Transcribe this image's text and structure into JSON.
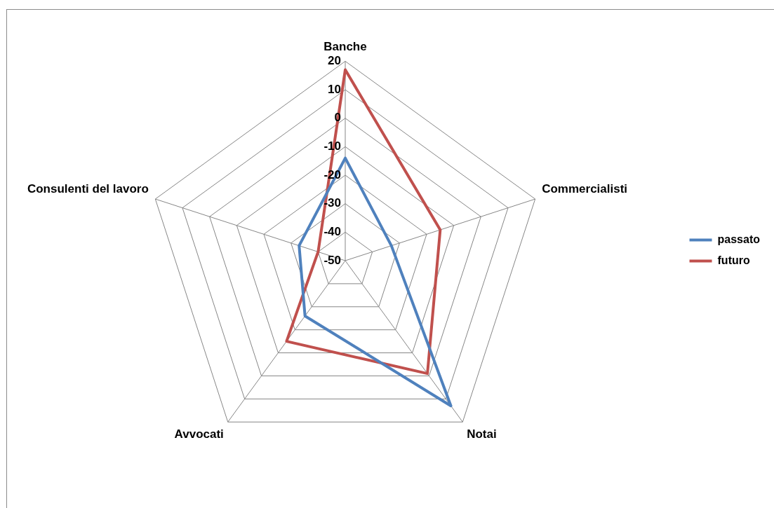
{
  "chart_data": {
    "type": "radar",
    "categories": [
      "Banche",
      "Commercialisti",
      "Notai",
      "Avvocati",
      "Consulenti del lavoro"
    ],
    "series": [
      {
        "name": "passato",
        "color": "#4f81bd",
        "values": [
          -14,
          -33,
          13,
          -26,
          -33
        ]
      },
      {
        "name": "futuro",
        "color": "#c0504d",
        "values": [
          17,
          -15,
          -1,
          -15,
          -40
        ]
      }
    ],
    "ylim": [
      -50,
      20
    ],
    "yticks": [
      -50,
      -40,
      -30,
      -20,
      -10,
      0,
      10,
      20
    ],
    "grid": true,
    "legend": "right"
  }
}
